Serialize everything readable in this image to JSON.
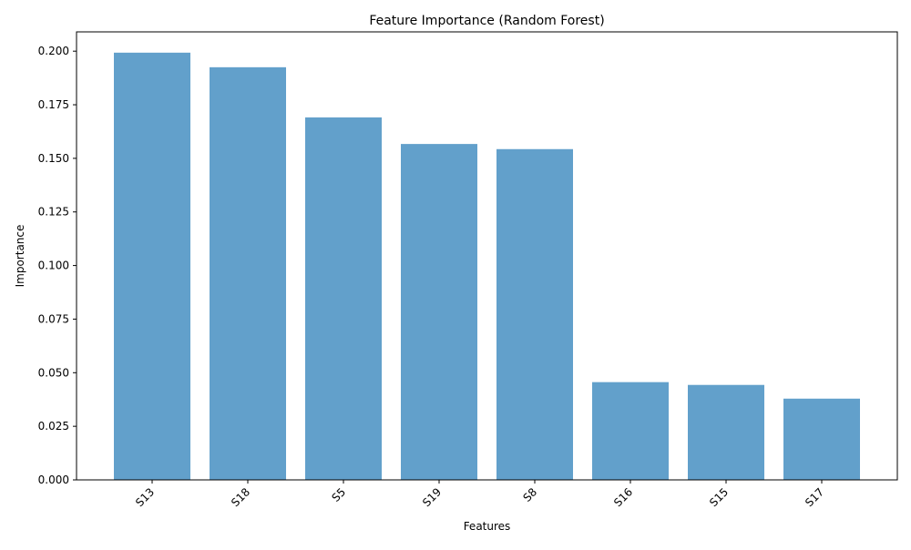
{
  "chart_data": {
    "type": "bar",
    "title": "Feature Importance (Random Forest)",
    "xlabel": "Features",
    "ylabel": "Importance",
    "categories": [
      "S13",
      "S18",
      "S5",
      "S19",
      "S8",
      "S16",
      "S15",
      "S17"
    ],
    "values": [
      0.1993,
      0.1925,
      0.1691,
      0.1567,
      0.1543,
      0.0456,
      0.0443,
      0.0379
    ],
    "ylim": [
      0,
      0.209
    ],
    "yticks": [
      0.0,
      0.025,
      0.05,
      0.075,
      0.1,
      0.125,
      0.15,
      0.175,
      0.2
    ],
    "ytick_labels": [
      "0.000",
      "0.025",
      "0.050",
      "0.075",
      "0.100",
      "0.125",
      "0.150",
      "0.175",
      "0.200"
    ],
    "bar_color": "#62a0cb",
    "grid": false,
    "legend": "none"
  }
}
